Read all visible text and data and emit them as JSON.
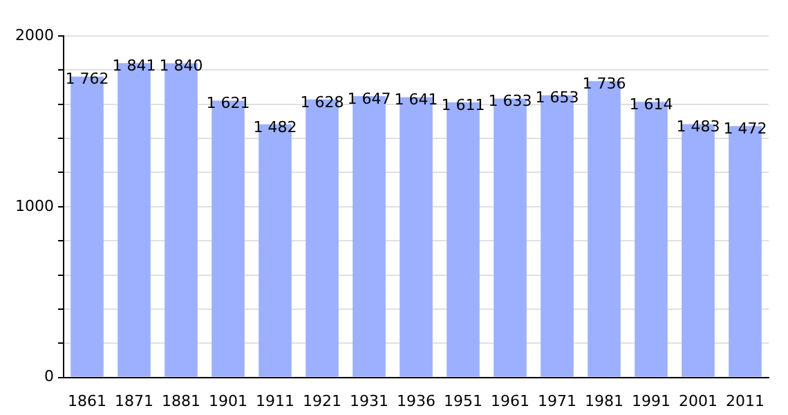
{
  "chart_data": {
    "type": "bar",
    "categories": [
      "1861",
      "1871",
      "1881",
      "1901",
      "1911",
      "1921",
      "1931",
      "1936",
      "1951",
      "1961",
      "1971",
      "1981",
      "1991",
      "2001",
      "2011"
    ],
    "values": [
      1762,
      1841,
      1840,
      1621,
      1482,
      1628,
      1647,
      1641,
      1611,
      1633,
      1653,
      1736,
      1614,
      1483,
      1472
    ],
    "value_labels": [
      "1 762",
      "1 841",
      "1 840",
      "1 621",
      "1 482",
      "1 628",
      "1 647",
      "1 641",
      "1 611",
      "1 633",
      "1 653",
      "1 736",
      "1 614",
      "1 483",
      "1 472"
    ],
    "color": "#9cb0ff",
    "ylim": [
      0,
      2000
    ],
    "yticks": [
      0,
      {
        "value": 200,
        "label": null
      },
      {
        "value": 400,
        "label": null
      },
      {
        "value": 600,
        "label": null
      },
      {
        "value": 800,
        "label": null
      },
      1000,
      {
        "value": 1200,
        "label": null
      },
      {
        "value": 1400,
        "label": null
      },
      {
        "value": 1600,
        "label": null
      },
      {
        "value": 1800,
        "label": null
      },
      2000
    ],
    "grid": "y"
  }
}
